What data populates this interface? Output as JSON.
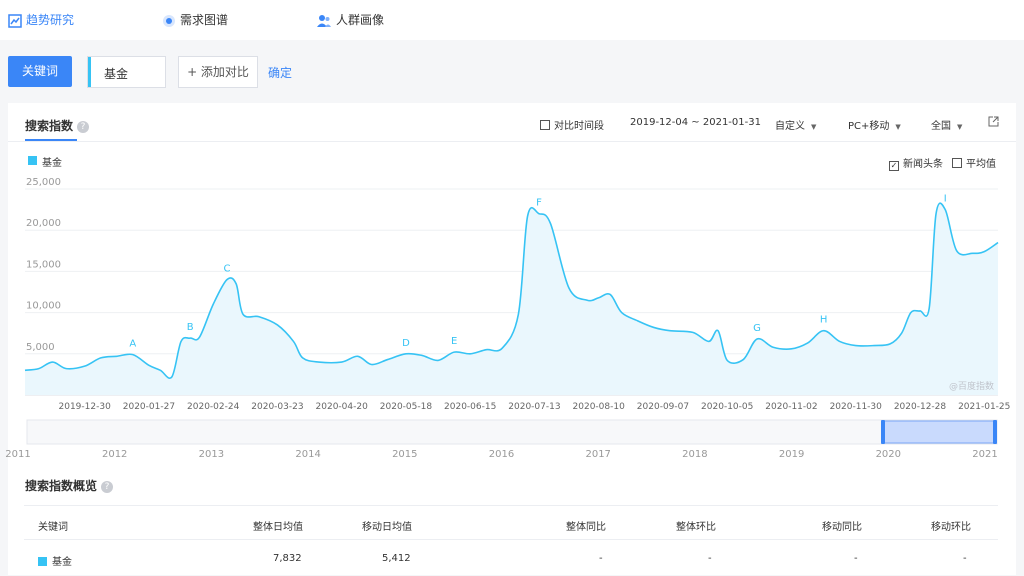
{
  "nav": [
    {
      "label": "趋势研究",
      "icon": "trend-chart-icon",
      "active": true
    },
    {
      "label": "需求图谱",
      "icon": "target-icon",
      "active": false
    },
    {
      "label": "人群画像",
      "icon": "people-icon",
      "active": false
    }
  ],
  "keyword_bar": {
    "keyword_button": "关键词",
    "keyword": "基金",
    "add_compare": "+ 添加对比",
    "confirm": "确定"
  },
  "panel": {
    "title": "搜索指数",
    "compare_period": "对比时间段",
    "date_range": "2019-12-04 ~ 2021-01-31",
    "custom": "自定义",
    "device": "PC+移动",
    "region": "全国",
    "news_headline": "新闻头条",
    "average": "平均值",
    "watermark": "@百度指数",
    "accent_color": "#3a86f7",
    "series_color": "#36c3f4"
  },
  "chart_data": {
    "type": "area",
    "series": [
      {
        "name": "基金",
        "color": "#36c3f4"
      }
    ],
    "ylim": [
      0,
      25000
    ],
    "yticks": [
      "5,000",
      "10,000",
      "15,000",
      "20,000",
      "25,000"
    ],
    "xticks": [
      "2019-12-30",
      "2020-01-27",
      "2020-02-24",
      "2020-03-23",
      "2020-04-20",
      "2020-05-18",
      "2020-06-15",
      "2020-07-13",
      "2020-08-10",
      "2020-09-07",
      "2020-10-05",
      "2020-11-02",
      "2020-11-30",
      "2020-12-28",
      "2021-01-25"
    ],
    "points": [
      [
        "2019-12-04",
        3000
      ],
      [
        "2019-12-10",
        3200
      ],
      [
        "2019-12-16",
        4000
      ],
      [
        "2019-12-22",
        3200
      ],
      [
        "2019-12-30",
        3500
      ],
      [
        "2020-01-06",
        4500
      ],
      [
        "2020-01-13",
        4700
      ],
      [
        "2020-01-20",
        4900
      ],
      [
        "2020-01-27",
        3600
      ],
      [
        "2020-02-01",
        3000
      ],
      [
        "2020-02-06",
        2200
      ],
      [
        "2020-02-10",
        6500
      ],
      [
        "2020-02-14",
        6900
      ],
      [
        "2020-02-18",
        7000
      ],
      [
        "2020-02-24",
        11000
      ],
      [
        "2020-03-01",
        14000
      ],
      [
        "2020-03-05",
        13500
      ],
      [
        "2020-03-08",
        9800
      ],
      [
        "2020-03-15",
        9500
      ],
      [
        "2020-03-23",
        8500
      ],
      [
        "2020-03-30",
        6500
      ],
      [
        "2020-04-03",
        4500
      ],
      [
        "2020-04-10",
        4000
      ],
      [
        "2020-04-20",
        4000
      ],
      [
        "2020-04-27",
        4700
      ],
      [
        "2020-05-03",
        3700
      ],
      [
        "2020-05-10",
        4300
      ],
      [
        "2020-05-18",
        5000
      ],
      [
        "2020-05-25",
        4800
      ],
      [
        "2020-06-01",
        4200
      ],
      [
        "2020-06-08",
        5200
      ],
      [
        "2020-06-15",
        5000
      ],
      [
        "2020-06-22",
        5500
      ],
      [
        "2020-06-29",
        5700
      ],
      [
        "2020-07-06",
        9800
      ],
      [
        "2020-07-10",
        21700
      ],
      [
        "2020-07-15",
        22000
      ],
      [
        "2020-07-20",
        20800
      ],
      [
        "2020-07-28",
        13000
      ],
      [
        "2020-08-05",
        11500
      ],
      [
        "2020-08-10",
        11800
      ],
      [
        "2020-08-15",
        12200
      ],
      [
        "2020-08-20",
        10000
      ],
      [
        "2020-08-27",
        9000
      ],
      [
        "2020-09-03",
        8200
      ],
      [
        "2020-09-10",
        7800
      ],
      [
        "2020-09-20",
        7600
      ],
      [
        "2020-09-27",
        6500
      ],
      [
        "2020-10-01",
        7800
      ],
      [
        "2020-10-05",
        4200
      ],
      [
        "2020-10-12",
        4300
      ],
      [
        "2020-10-18",
        6800
      ],
      [
        "2020-10-25",
        5800
      ],
      [
        "2020-11-02",
        5600
      ],
      [
        "2020-11-09",
        6300
      ],
      [
        "2020-11-16",
        7800
      ],
      [
        "2020-11-23",
        6500
      ],
      [
        "2020-11-30",
        6000
      ],
      [
        "2020-12-08",
        6000
      ],
      [
        "2020-12-15",
        6200
      ],
      [
        "2020-12-20",
        7500
      ],
      [
        "2020-12-24",
        10000
      ],
      [
        "2020-12-28",
        10200
      ],
      [
        "2021-01-01",
        10500
      ],
      [
        "2021-01-04",
        22000
      ],
      [
        "2021-01-08",
        22500
      ],
      [
        "2021-01-13",
        17500
      ],
      [
        "2021-01-20",
        17200
      ],
      [
        "2021-01-25",
        17400
      ],
      [
        "2021-01-31",
        18500
      ]
    ],
    "annotations": [
      {
        "label": "A",
        "date": "2020-01-20",
        "value": 4900
      },
      {
        "label": "B",
        "date": "2020-02-14",
        "value": 6900
      },
      {
        "label": "C",
        "date": "2020-03-01",
        "value": 14000
      },
      {
        "label": "D",
        "date": "2020-05-18",
        "value": 5000
      },
      {
        "label": "E",
        "date": "2020-06-08",
        "value": 5200
      },
      {
        "label": "F",
        "date": "2020-07-15",
        "value": 22000
      },
      {
        "label": "G",
        "date": "2020-10-18",
        "value": 6800
      },
      {
        "label": "H",
        "date": "2020-11-16",
        "value": 7800
      },
      {
        "label": "I",
        "date": "2021-01-08",
        "value": 22500
      }
    ],
    "overview_axis": [
      "2011",
      "2012",
      "2013",
      "2014",
      "2015",
      "2016",
      "2017",
      "2018",
      "2019",
      "2020",
      "2021"
    ]
  },
  "summary": {
    "title": "搜索指数概览",
    "headers": [
      "关键词",
      "整体日均值",
      "移动日均值",
      "整体同比",
      "整体环比",
      "移动同比",
      "移动环比"
    ],
    "rows": [
      {
        "keyword": "基金",
        "overall_avg": "7,832",
        "mobile_avg": "5,412",
        "overall_yoy": "-",
        "overall_mom": "-",
        "mobile_yoy": "-",
        "mobile_mom": "-"
      }
    ]
  }
}
